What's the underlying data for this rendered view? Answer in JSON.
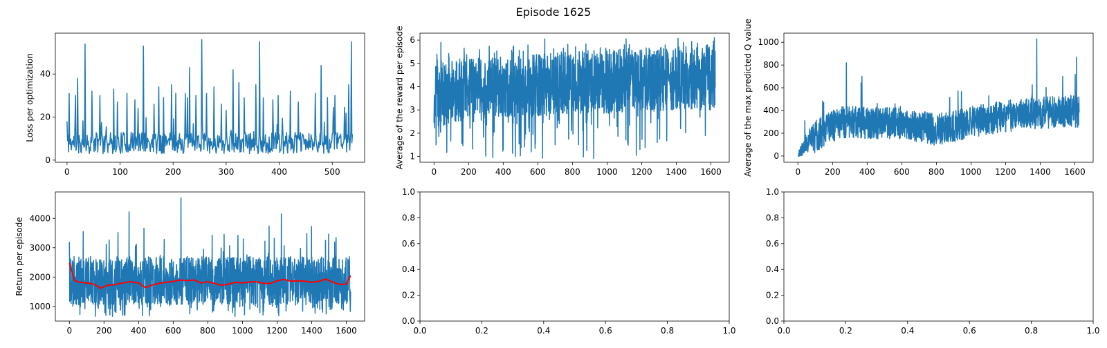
{
  "figure": {
    "title": "Episode 1625"
  },
  "chart_data": [
    {
      "type": "line",
      "title": "",
      "xlabel": "",
      "ylabel": "Loss per optimization",
      "xlim": [
        -22,
        561
      ],
      "ylim": [
        -1,
        59
      ],
      "xticks": [
        0,
        100,
        200,
        300,
        400,
        500
      ],
      "yticks": [
        0,
        20,
        40
      ],
      "grid": false,
      "series": [
        {
          "color": "#1f77b4",
          "n": 539,
          "seed": 11,
          "profile": "spiky",
          "x_range": [
            0,
            538
          ],
          "baseline": 8,
          "spread": 5,
          "min": 2,
          "peaks": [
            [
              0,
              18
            ],
            [
              4,
              31
            ],
            [
              16,
              30
            ],
            [
              20,
              38
            ],
            [
              34,
              54
            ],
            [
              47,
              32
            ],
            [
              62,
              30
            ],
            [
              88,
              33
            ],
            [
              95,
              27
            ],
            [
              113,
              31
            ],
            [
              128,
              28
            ],
            [
              134,
              24
            ],
            [
              144,
              53
            ],
            [
              164,
              26
            ],
            [
              173,
              34
            ],
            [
              182,
              29
            ],
            [
              197,
              35
            ],
            [
              205,
              31
            ],
            [
              223,
              31
            ],
            [
              227,
              29
            ],
            [
              231,
              43
            ],
            [
              243,
              30
            ],
            [
              254,
              56
            ],
            [
              263,
              31
            ],
            [
              277,
              34
            ],
            [
              291,
              26
            ],
            [
              313,
              42
            ],
            [
              324,
              36
            ],
            [
              334,
              29
            ],
            [
              356,
              35
            ],
            [
              363,
              55
            ],
            [
              370,
              29
            ],
            [
              388,
              28
            ],
            [
              398,
              30
            ],
            [
              421,
              32
            ],
            [
              436,
              27
            ],
            [
              468,
              31
            ],
            [
              479,
              44
            ],
            [
              491,
              29
            ],
            [
              505,
              30
            ],
            [
              531,
              35
            ],
            [
              536,
              55
            ]
          ],
          "end_value": 12
        }
      ]
    },
    {
      "type": "line",
      "title": "",
      "xlabel": "",
      "ylabel": "Average of the reward per episode",
      "xlim": [
        -81,
        1706
      ],
      "ylim": [
        0.75,
        6.3
      ],
      "xticks": [
        0,
        200,
        400,
        600,
        800,
        1000,
        1200,
        1400,
        1600
      ],
      "yticks": [
        1,
        2,
        3,
        4,
        5,
        6
      ],
      "grid": false,
      "series": [
        {
          "color": "#1f77b4",
          "n": 1626,
          "seed": 23,
          "profile": "dense",
          "x_range": [
            0,
            1625
          ],
          "low_band": [
            [
              0,
              2.2
            ],
            [
              200,
              2.6
            ],
            [
              800,
              2.8
            ],
            [
              1625,
              3.0
            ]
          ],
          "high_band": [
            [
              0,
              5.0
            ],
            [
              200,
              5.2
            ],
            [
              1000,
              5.6
            ],
            [
              1625,
              5.8
            ]
          ],
          "min": 0.9,
          "max": 6.1,
          "dips": [
            [
              12,
              1.5
            ],
            [
              340,
              0.95
            ],
            [
              400,
              1.3
            ],
            [
              470,
              1.0
            ],
            [
              700,
              1.5
            ],
            [
              1190,
              1.3
            ],
            [
              1290,
              1.6
            ]
          ],
          "spikes": [
            [
              40,
              5.9
            ],
            [
              640,
              6.05
            ],
            [
              1110,
              6.05
            ],
            [
              1410,
              6.08
            ],
            [
              1620,
              6.1
            ]
          ]
        }
      ]
    },
    {
      "type": "line",
      "title": "",
      "xlabel": "",
      "ylabel": "Average of the max predicted Q value",
      "xlim": [
        -81,
        1706
      ],
      "ylim": [
        -55,
        1080
      ],
      "xticks": [
        0,
        200,
        400,
        600,
        800,
        1000,
        1200,
        1400,
        1600
      ],
      "yticks": [
        0,
        200,
        400,
        600,
        800,
        1000
      ],
      "grid": false,
      "series": [
        {
          "color": "#1f77b4",
          "n": 1626,
          "seed": 37,
          "profile": "trend",
          "x_range": [
            0,
            1625
          ],
          "trend": [
            [
              0,
              0
            ],
            [
              50,
              120
            ],
            [
              150,
              220
            ],
            [
              250,
              300
            ],
            [
              400,
              290
            ],
            [
              600,
              290
            ],
            [
              800,
              230
            ],
            [
              1000,
              300
            ],
            [
              1200,
              350
            ],
            [
              1400,
              380
            ],
            [
              1625,
              390
            ]
          ],
          "noise": 140,
          "min": 0,
          "spikes": [
            [
              280,
              820
            ],
            [
              370,
              700
            ],
            [
              1380,
              1030
            ],
            [
              1610,
              870
            ],
            [
              1530,
              700
            ]
          ]
        }
      ]
    },
    {
      "type": "line",
      "title": "",
      "xlabel": "",
      "ylabel": "Return per episode",
      "xlim": [
        -81,
        1706
      ],
      "ylim": [
        500,
        4900
      ],
      "xticks": [
        0,
        200,
        400,
        600,
        800,
        1000,
        1200,
        1400,
        1600
      ],
      "yticks": [
        1000,
        2000,
        3000,
        4000
      ],
      "grid": false,
      "series": [
        {
          "color": "#1f77b4",
          "n": 1626,
          "seed": 53,
          "profile": "dense",
          "x_range": [
            0,
            1625
          ],
          "low_band": [
            [
              0,
              1050
            ],
            [
              1625,
              1050
            ]
          ],
          "high_band": [
            [
              0,
              2700
            ],
            [
              1625,
              2700
            ]
          ],
          "min": 650,
          "max": 4700,
          "dips": [
            [
              10,
              1100
            ]
          ],
          "spikes": [
            [
              0,
              3200
            ],
            [
              80,
              3550
            ],
            [
              345,
              4220
            ],
            [
              645,
              4700
            ],
            [
              1005,
              3300
            ],
            [
              1225,
              4150
            ],
            [
              1480,
              3250
            ]
          ]
        },
        {
          "color": "#ff0000",
          "profile": "smooth",
          "points": [
            [
              0,
              2480
            ],
            [
              30,
              1880
            ],
            [
              60,
              1820
            ],
            [
              100,
              1800
            ],
            [
              140,
              1760
            ],
            [
              180,
              1620
            ],
            [
              220,
              1720
            ],
            [
              260,
              1740
            ],
            [
              300,
              1790
            ],
            [
              350,
              1840
            ],
            [
              400,
              1800
            ],
            [
              440,
              1640
            ],
            [
              480,
              1730
            ],
            [
              520,
              1790
            ],
            [
              560,
              1820
            ],
            [
              600,
              1850
            ],
            [
              640,
              1900
            ],
            [
              680,
              1880
            ],
            [
              720,
              1900
            ],
            [
              760,
              1800
            ],
            [
              800,
              1840
            ],
            [
              840,
              1780
            ],
            [
              880,
              1720
            ],
            [
              920,
              1760
            ],
            [
              960,
              1820
            ],
            [
              1000,
              1800
            ],
            [
              1040,
              1830
            ],
            [
              1080,
              1840
            ],
            [
              1120,
              1790
            ],
            [
              1160,
              1780
            ],
            [
              1200,
              1870
            ],
            [
              1240,
              1920
            ],
            [
              1280,
              1860
            ],
            [
              1320,
              1870
            ],
            [
              1360,
              1860
            ],
            [
              1400,
              1820
            ],
            [
              1440,
              1850
            ],
            [
              1480,
              1930
            ],
            [
              1520,
              1830
            ],
            [
              1560,
              1750
            ],
            [
              1600,
              1760
            ],
            [
              1625,
              2050
            ]
          ]
        }
      ]
    },
    {
      "type": "line",
      "title": "",
      "xlabel": "",
      "ylabel": "",
      "xlim": [
        0,
        1
      ],
      "ylim": [
        0,
        1
      ],
      "xticks": [
        "0.0",
        "0.2",
        "0.4",
        "0.6",
        "0.8",
        "1.0"
      ],
      "yticks": [
        "0.0",
        "0.2",
        "0.4",
        "0.6",
        "0.8",
        "1.0"
      ],
      "grid": false,
      "series": []
    },
    {
      "type": "line",
      "title": "",
      "xlabel": "",
      "ylabel": "",
      "xlim": [
        0,
        1
      ],
      "ylim": [
        0,
        1
      ],
      "xticks": [
        "0.0",
        "0.2",
        "0.4",
        "0.6",
        "0.8",
        "1.0"
      ],
      "yticks": [
        "0.0",
        "0.2",
        "0.4",
        "0.6",
        "0.8",
        "1.0"
      ],
      "grid": false,
      "series": []
    }
  ]
}
